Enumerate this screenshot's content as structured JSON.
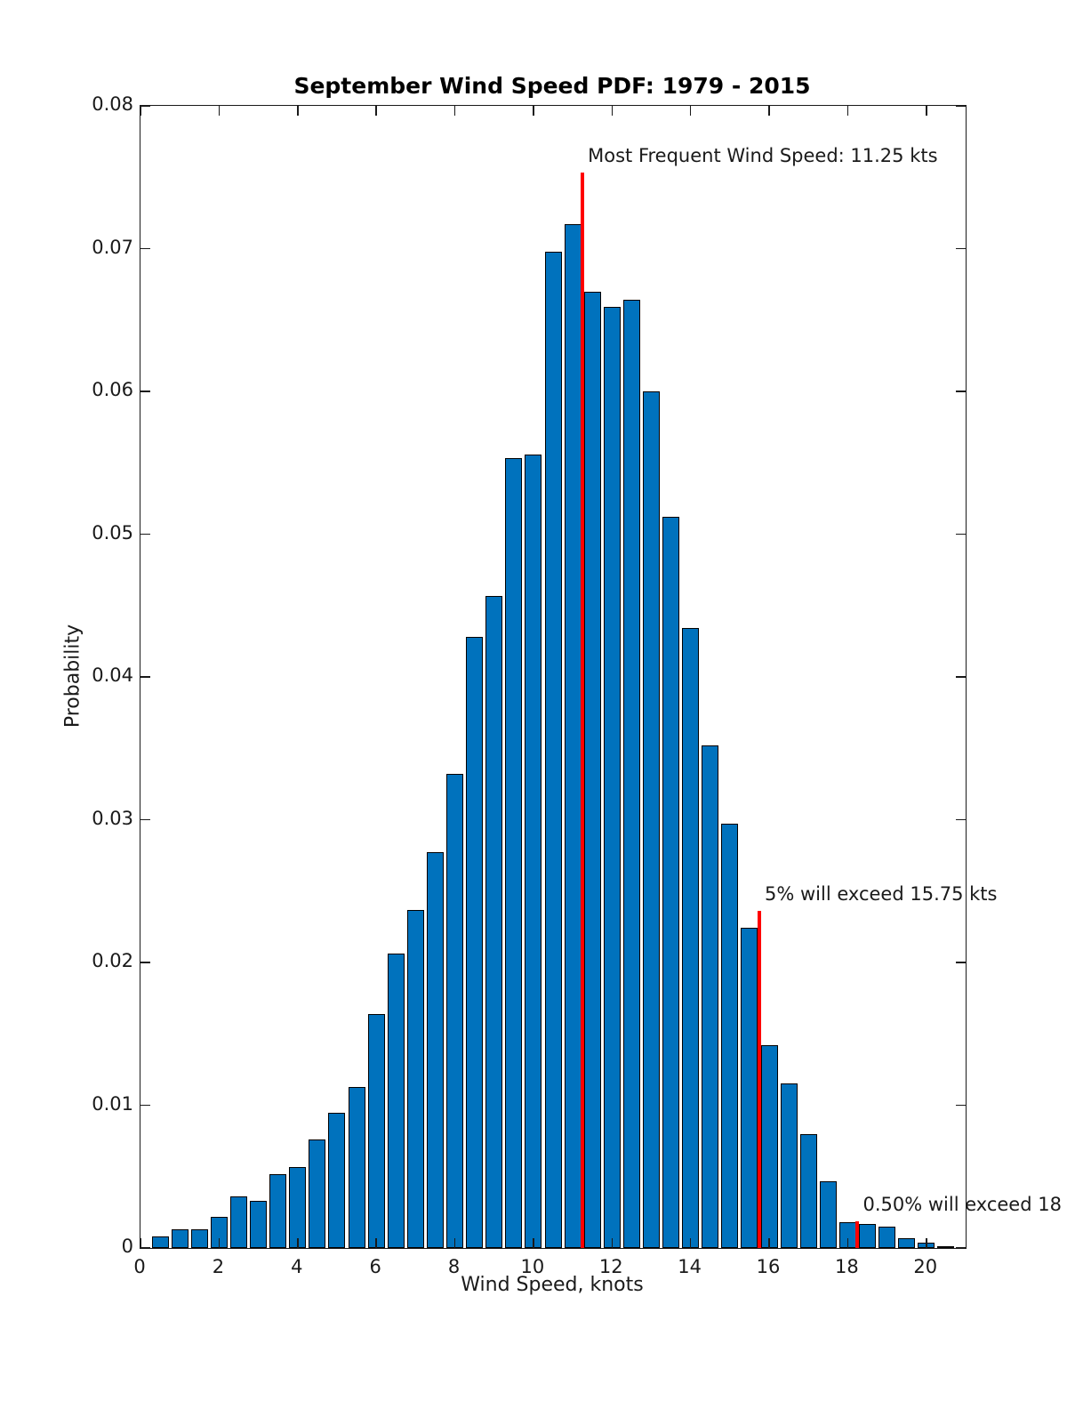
{
  "figure": {
    "title": "September Wind Speed PDF: 1979 - 2015",
    "xlabel": "Wind Speed, knots",
    "ylabel": "Probability"
  },
  "chart_data": {
    "type": "bar",
    "title": "September Wind Speed PDF: 1979 - 2015",
    "xlabel": "Wind Speed, knots",
    "ylabel": "Probability",
    "bin_width_knots": 0.5,
    "x": [
      0.5,
      1.0,
      1.5,
      2.0,
      2.5,
      3.0,
      3.5,
      4.0,
      4.5,
      5.0,
      5.5,
      6.0,
      6.5,
      7.0,
      7.5,
      8.0,
      8.5,
      9.0,
      9.5,
      10.0,
      10.5,
      11.0,
      11.5,
      12.0,
      12.5,
      13.0,
      13.5,
      14.0,
      14.5,
      15.0,
      15.5,
      16.0,
      16.5,
      17.0,
      17.5,
      18.0,
      18.5,
      19.0,
      19.5,
      20.0,
      20.5
    ],
    "values": [
      0.0008,
      0.0013,
      0.0013,
      0.0022,
      0.0036,
      0.0033,
      0.0052,
      0.0057,
      0.0076,
      0.0095,
      0.0113,
      0.0164,
      0.0206,
      0.0237,
      0.0277,
      0.0332,
      0.0428,
      0.0457,
      0.0553,
      0.0556,
      0.0698,
      0.0717,
      0.067,
      0.0659,
      0.0664,
      0.06,
      0.0512,
      0.0434,
      0.0352,
      0.0297,
      0.0224,
      0.0142,
      0.0115,
      0.008,
      0.0047,
      0.0018,
      0.0017,
      0.0015,
      0.0007,
      0.0004,
      0.0001
    ],
    "xlim": [
      0,
      21
    ],
    "ylim": [
      0,
      0.08
    ],
    "xticks": [
      0,
      2,
      4,
      6,
      8,
      10,
      12,
      14,
      16,
      18,
      20
    ],
    "xtick_labels": [
      "0",
      "2",
      "4",
      "6",
      "8",
      "10",
      "12",
      "14",
      "16",
      "18",
      "20"
    ],
    "yticks": [
      0,
      0.01,
      0.02,
      0.03,
      0.04,
      0.05,
      0.06,
      0.07,
      0.08
    ],
    "ytick_labels": [
      "0",
      "0.01",
      "0.02",
      "0.03",
      "0.04",
      "0.05",
      "0.06",
      "0.07",
      "0.08"
    ],
    "grid": false,
    "legend": false,
    "bar_color": "#0072BD",
    "bar_edge_color": "#000000",
    "marker_line_color": "#ff0000",
    "marker_lines": [
      {
        "x": 11.25,
        "top": 0.0753,
        "label": "Most Frequent Wind Speed: 11.25 kts"
      },
      {
        "x": 15.75,
        "top": 0.0236,
        "label": "5% will exceed 15.75 kts"
      },
      {
        "x": 18.25,
        "top": 0.0019,
        "label": "0.50% will exceed 18"
      }
    ]
  }
}
